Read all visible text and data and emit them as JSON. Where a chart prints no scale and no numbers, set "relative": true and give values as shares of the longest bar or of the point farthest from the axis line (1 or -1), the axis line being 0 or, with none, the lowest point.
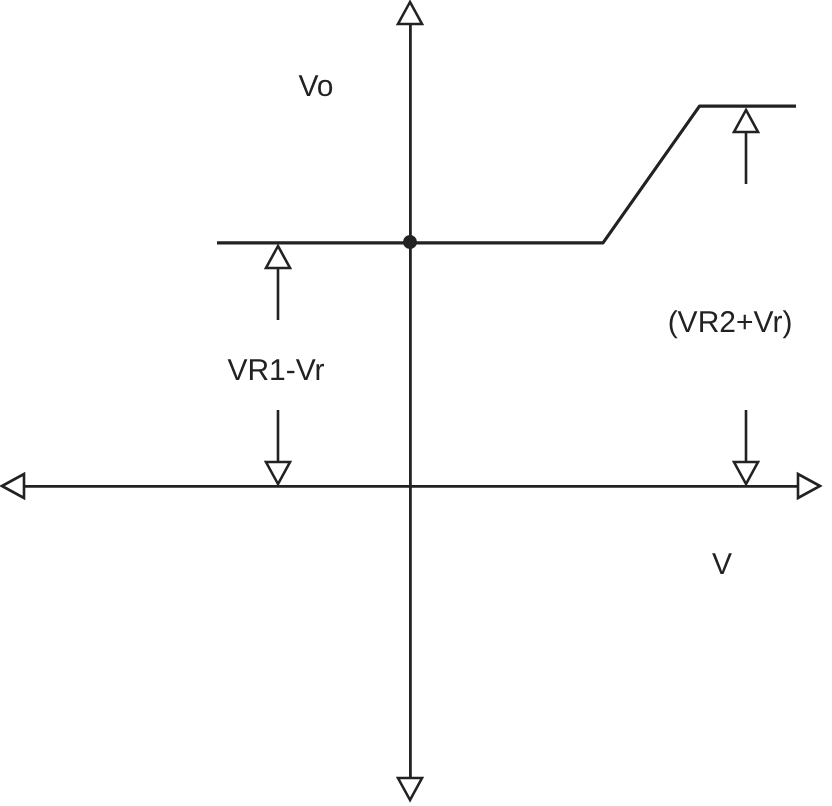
{
  "chart_data": {
    "type": "line",
    "relative": true,
    "xlabel": "V",
    "ylabel": "Vo",
    "categories": [
      null,
      null,
      null,
      null,
      null,
      null,
      null,
      null,
      null
    ],
    "series": [
      {
        "color": "#222222",
        "values": [
          null,
          null,
          0.64,
          0.64,
          0.64,
          0.64,
          0.64,
          1,
          1
        ]
      }
    ],
    "annotations": [
      "VR1-Vr",
      "(VR2+Vr)"
    ],
    "marker": "none",
    "line_style": "solid",
    "legend": false
  }
}
